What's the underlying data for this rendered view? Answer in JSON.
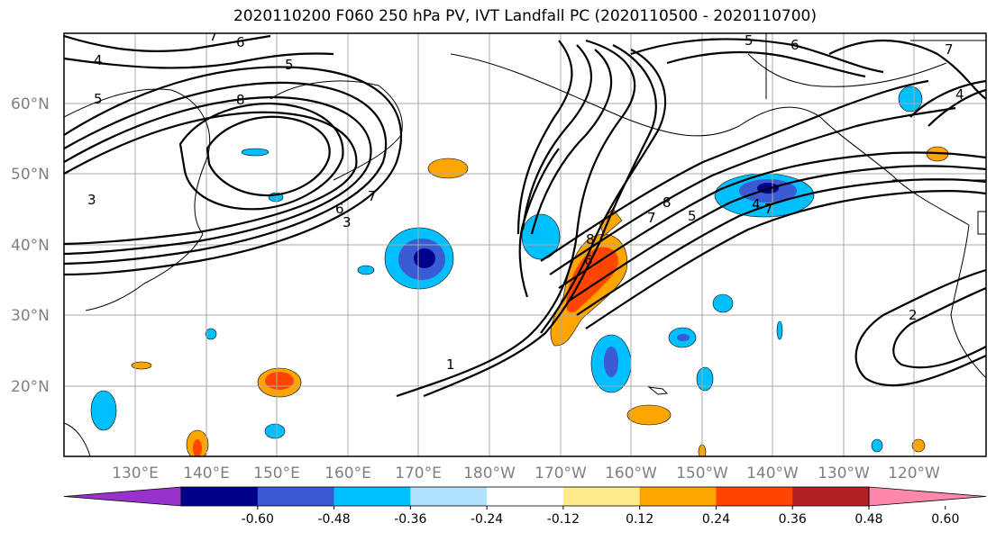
{
  "title": "2020110200 F060 250 hPa PV, IVT Landfall PC (2020110500 - 2020110700)",
  "lat_labels": [
    "60°N",
    "50°N",
    "40°N",
    "30°N",
    "20°N"
  ],
  "lon_labels": [
    "130°E",
    "140°E",
    "150°E",
    "160°E",
    "170°E",
    "180°W",
    "170°W",
    "160°W",
    "150°W",
    "140°W",
    "130°W",
    "120°W"
  ],
  "contour_labels": [
    "1",
    "2",
    "3",
    "4",
    "5",
    "6",
    "7",
    "8"
  ],
  "colorbar": {
    "ticks": [
      "-0.60",
      "-0.48",
      "-0.36",
      "-0.24",
      "-0.12",
      "0.12",
      "0.24",
      "0.36",
      "0.48",
      "0.60"
    ],
    "colors": [
      "#9932cc",
      "#00008b",
      "#3a5bd3",
      "#00bfff",
      "#b0e0ff",
      "#ffffff",
      "#ffeb8a",
      "#ffa500",
      "#ff4500",
      "#b22222",
      "#ff88aa"
    ]
  },
  "colors": {
    "gridline": "#aaaaaa",
    "axis_label": "#808080",
    "contour": "#000000"
  }
}
